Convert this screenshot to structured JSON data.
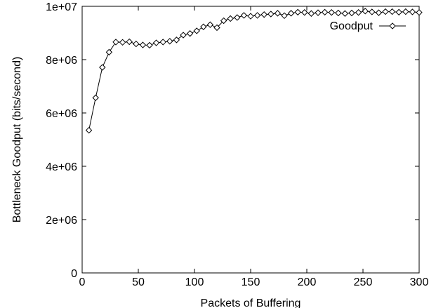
{
  "chart_data": {
    "type": "line",
    "xlabel": "Packets of Buffering",
    "ylabel": "Bottleneck Goodput (bits/second)",
    "xlim": [
      0,
      300
    ],
    "ylim": [
      0,
      10000000
    ],
    "x_ticks": [
      0,
      50,
      100,
      150,
      200,
      250,
      300
    ],
    "y_ticks": [
      0,
      2000000,
      4000000,
      6000000,
      8000000,
      10000000
    ],
    "x_tick_labels": [
      "0",
      "50",
      "100",
      "150",
      "200",
      "250",
      "300"
    ],
    "y_tick_labels": [
      "0",
      "2e+06",
      "4e+06",
      "6e+06",
      "8e+06",
      "1e+07"
    ],
    "grid": false,
    "legend_position": "top-right",
    "series": [
      {
        "name": "Goodput",
        "marker": "diamond",
        "color": "#000000",
        "x": [
          6,
          12,
          18,
          24,
          30,
          36,
          42,
          48,
          54,
          60,
          66,
          72,
          78,
          84,
          90,
          96,
          102,
          108,
          114,
          120,
          126,
          132,
          138,
          144,
          150,
          156,
          162,
          168,
          174,
          180,
          186,
          192,
          198,
          204,
          210,
          216,
          222,
          228,
          234,
          240,
          246,
          252,
          258,
          264,
          270,
          276,
          282,
          288,
          294,
          300
        ],
        "y": [
          5350000,
          6570000,
          7710000,
          8280000,
          8660000,
          8650000,
          8670000,
          8590000,
          8550000,
          8540000,
          8630000,
          8660000,
          8690000,
          8740000,
          8920000,
          8980000,
          9080000,
          9230000,
          9310000,
          9200000,
          9460000,
          9540000,
          9580000,
          9660000,
          9630000,
          9660000,
          9690000,
          9710000,
          9740000,
          9650000,
          9740000,
          9780000,
          9770000,
          9730000,
          9760000,
          9780000,
          9770000,
          9750000,
          9730000,
          9750000,
          9770000,
          9820000,
          9790000,
          9760000,
          9800000,
          9800000,
          9780000,
          9800000,
          9790000,
          9770000
        ]
      }
    ]
  }
}
